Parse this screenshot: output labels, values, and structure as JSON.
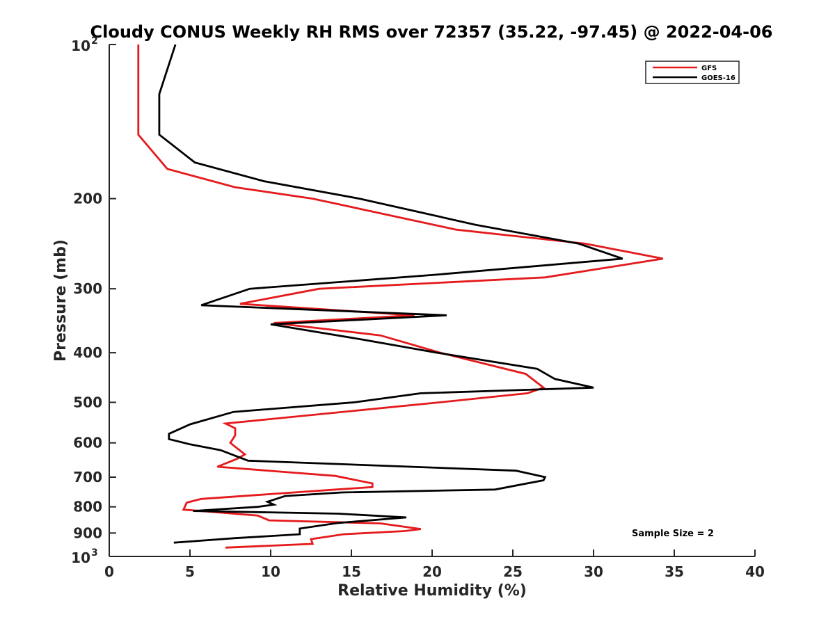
{
  "chart_data": {
    "type": "line",
    "title": "Cloudy CONUS Weekly RH RMS over 72357 (35.22, -97.45) @ 2022-04-06",
    "xlabel": "Relative Humidity (%)",
    "ylabel": "Pressure (mb)",
    "xlim": [
      0,
      40
    ],
    "ylim": [
      100,
      1000
    ],
    "y_scale": "log",
    "y_reversed": true,
    "grid": false,
    "legend_position": "top-right",
    "x_ticks": [
      "0",
      "5",
      "10",
      "15",
      "20",
      "25",
      "30",
      "35",
      "40"
    ],
    "y_ticks": [
      {
        "value": 100,
        "base": "10",
        "exp": "2"
      },
      {
        "value": 200,
        "label": "200"
      },
      {
        "value": 300,
        "label": "300"
      },
      {
        "value": 400,
        "label": "400"
      },
      {
        "value": 500,
        "label": "500"
      },
      {
        "value": 600,
        "label": "600"
      },
      {
        "value": 700,
        "label": "700"
      },
      {
        "value": 800,
        "label": "800"
      },
      {
        "value": 900,
        "label": "900"
      },
      {
        "value": 1000,
        "base": "10",
        "exp": "3"
      }
    ],
    "annotation": "Sample Size = 2",
    "series": [
      {
        "name": "GFS",
        "color": "#e41a1c",
        "points": [
          [
            1.8,
            100
          ],
          [
            1.8,
            150
          ],
          [
            3.6,
            175
          ],
          [
            7.8,
            190
          ],
          [
            12.6,
            200
          ],
          [
            21.5,
            230
          ],
          [
            29.5,
            245
          ],
          [
            34.3,
            262
          ],
          [
            27.0,
            285
          ],
          [
            13.0,
            300
          ],
          [
            8.1,
            321
          ],
          [
            18.9,
            338
          ],
          [
            10.2,
            350
          ],
          [
            16.8,
            370
          ],
          [
            20.5,
            400
          ],
          [
            25.8,
            440
          ],
          [
            26.9,
            468
          ],
          [
            25.9,
            480
          ],
          [
            20.5,
            500
          ],
          [
            7.2,
            550
          ],
          [
            7.8,
            562
          ],
          [
            7.8,
            580
          ],
          [
            7.5,
            600
          ],
          [
            8.4,
            632
          ],
          [
            7.9,
            645
          ],
          [
            6.7,
            668
          ],
          [
            14.0,
            696
          ],
          [
            16.3,
            720
          ],
          [
            16.3,
            732
          ],
          [
            13.8,
            741
          ],
          [
            5.7,
            772
          ],
          [
            4.8,
            785
          ],
          [
            4.6,
            810
          ],
          [
            9.2,
            832
          ],
          [
            9.9,
            850
          ],
          [
            16.8,
            862
          ],
          [
            19.3,
            884
          ],
          [
            18.3,
            892
          ],
          [
            14.5,
            905
          ],
          [
            12.5,
            925
          ],
          [
            12.6,
            945
          ],
          [
            7.2,
            961
          ]
        ]
      },
      {
        "name": "GOES-16",
        "color": "#000000",
        "points": [
          [
            4.1,
            100
          ],
          [
            3.1,
            125
          ],
          [
            3.1,
            150
          ],
          [
            5.3,
            170
          ],
          [
            9.6,
            185
          ],
          [
            15.5,
            200
          ],
          [
            22.7,
            225
          ],
          [
            29.1,
            245
          ],
          [
            31.8,
            262
          ],
          [
            20.0,
            282
          ],
          [
            8.7,
            300
          ],
          [
            5.7,
            323
          ],
          [
            20.9,
            338
          ],
          [
            10.0,
            352
          ],
          [
            15.7,
            377
          ],
          [
            20.3,
            400
          ],
          [
            26.5,
            430
          ],
          [
            27.6,
            450
          ],
          [
            30.0,
            468
          ],
          [
            19.3,
            480
          ],
          [
            15.2,
            500
          ],
          [
            7.7,
            522
          ],
          [
            5.0,
            552
          ],
          [
            3.7,
            576
          ],
          [
            3.7,
            590
          ],
          [
            5.0,
            604
          ],
          [
            6.9,
            620
          ],
          [
            8.6,
            650
          ],
          [
            25.2,
            680
          ],
          [
            27.0,
            700
          ],
          [
            26.9,
            710
          ],
          [
            23.9,
            740
          ],
          [
            14.4,
            750
          ],
          [
            10.9,
            762
          ],
          [
            9.8,
            782
          ],
          [
            10.2,
            792
          ],
          [
            9.2,
            800
          ],
          [
            5.2,
            815
          ],
          [
            14.2,
            825
          ],
          [
            18.4,
            839
          ],
          [
            14.2,
            860
          ],
          [
            11.8,
            882
          ],
          [
            11.8,
            905
          ],
          [
            7.8,
            921
          ],
          [
            4.0,
            940
          ]
        ]
      }
    ]
  }
}
